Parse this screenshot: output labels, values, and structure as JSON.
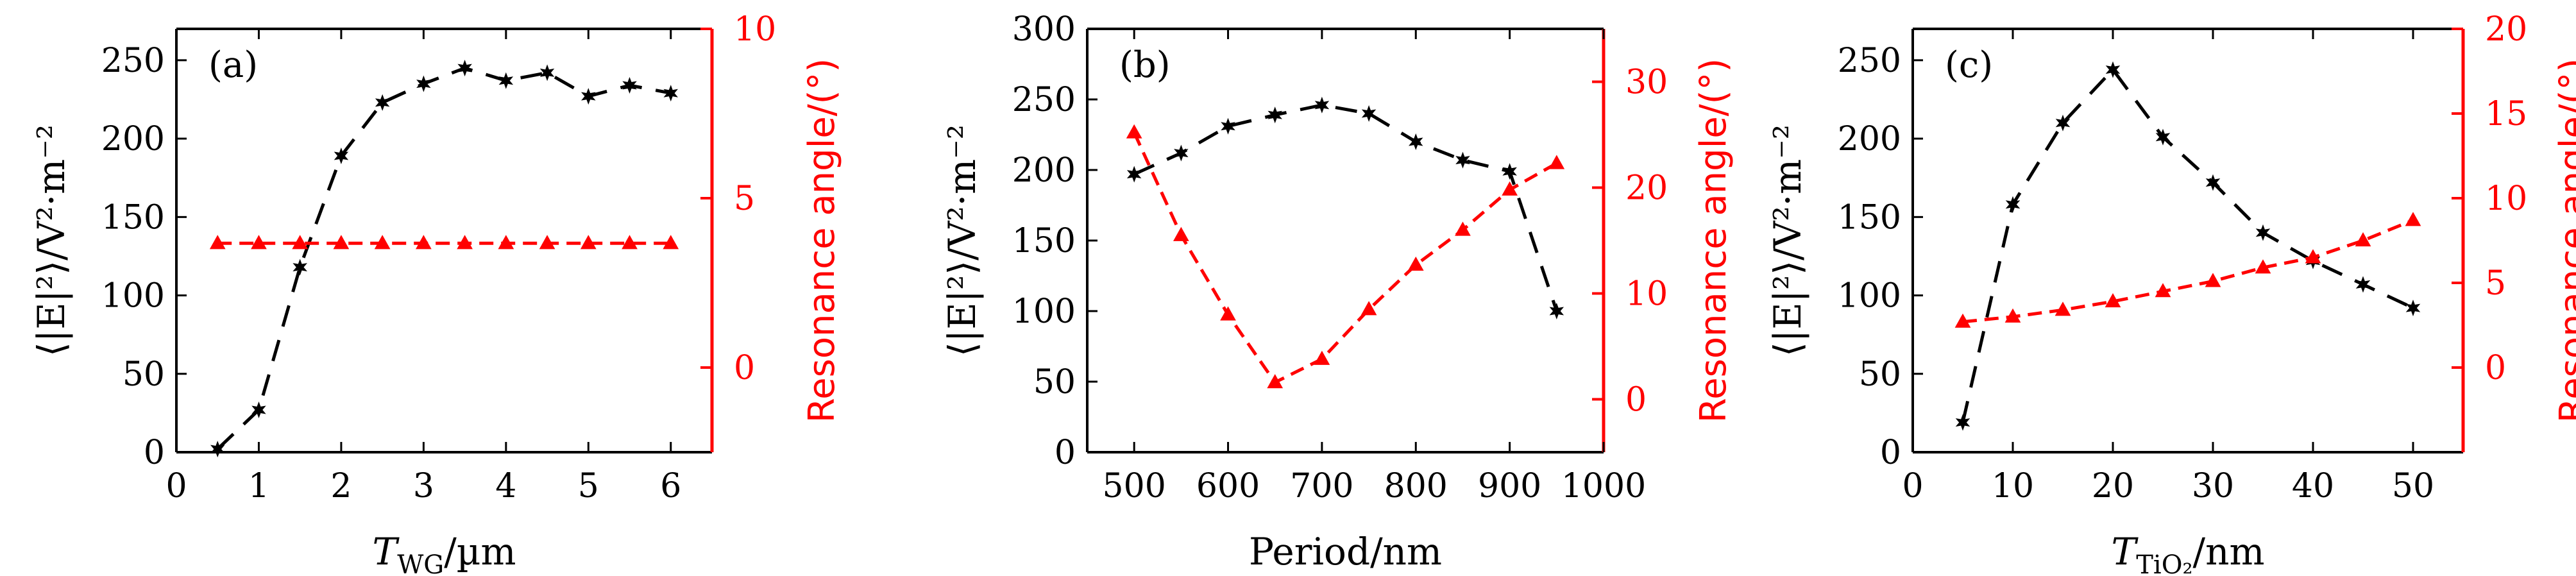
{
  "chart_data": [
    {
      "type": "line",
      "panel_label": "(a)",
      "xlabel_main": "T",
      "xlabel_sub": "WG",
      "xlabel_suffix": "/µm",
      "ylabel_left": "⟨|E|²⟩/V²·m⁻²",
      "ylabel_right": "Resonance angle/(°)",
      "xlim": [
        0,
        6.5
      ],
      "ylim_left": [
        0,
        270
      ],
      "ylim_right": [
        -2.5,
        10
      ],
      "x_ticks": [
        0,
        1,
        2,
        3,
        4,
        5,
        6
      ],
      "y_ticks_left": [
        0,
        50,
        100,
        150,
        200,
        250
      ],
      "y_ticks_right": [
        0,
        5,
        10
      ],
      "series": [
        {
          "name": "field intensity",
          "axis": "left",
          "color": "#000000",
          "marker": "star",
          "linestyle": "long-dash",
          "x": [
            0.5,
            1,
            1.5,
            2,
            2.5,
            3,
            3.5,
            4,
            4.5,
            5,
            5.5,
            6
          ],
          "y": [
            2,
            27,
            118,
            189,
            223,
            235,
            245,
            237,
            242,
            227,
            234,
            229
          ]
        },
        {
          "name": "resonance angle",
          "axis": "right",
          "color": "#ff0000",
          "marker": "triangle",
          "linestyle": "dash",
          "x": [
            0.5,
            1,
            1.5,
            2,
            2.5,
            3,
            3.5,
            4,
            4.5,
            5,
            5.5,
            6
          ],
          "y": [
            3.67,
            3.67,
            3.67,
            3.67,
            3.67,
            3.67,
            3.67,
            3.67,
            3.67,
            3.67,
            3.67,
            3.67
          ]
        }
      ]
    },
    {
      "type": "line",
      "panel_label": "(b)",
      "xlabel_main": "Period/nm",
      "xlabel_sub": "",
      "xlabel_suffix": "",
      "ylabel_left": "⟨|E|²⟩/V²·m⁻²",
      "ylabel_right": "Resonance angle/(°)",
      "xlim": [
        450,
        1000
      ],
      "ylim_left": [
        0,
        300
      ],
      "ylim_right": [
        -5,
        35
      ],
      "x_ticks": [
        500,
        600,
        700,
        800,
        900,
        1000
      ],
      "y_ticks_left": [
        0,
        50,
        100,
        150,
        200,
        250,
        300
      ],
      "y_ticks_right": [
        0,
        10,
        20,
        30
      ],
      "series": [
        {
          "name": "field intensity",
          "axis": "left",
          "color": "#000000",
          "marker": "star",
          "linestyle": "long-dash",
          "x": [
            500,
            550,
            600,
            650,
            700,
            750,
            800,
            850,
            900,
            950
          ],
          "y": [
            197,
            212,
            231,
            239,
            246,
            240,
            220,
            207,
            199,
            100
          ]
        },
        {
          "name": "resonance angle",
          "axis": "right",
          "color": "#ff0000",
          "marker": "triangle",
          "linestyle": "dash",
          "x": [
            500,
            550,
            600,
            650,
            700,
            750,
            800,
            850,
            900,
            950
          ],
          "y": [
            25.2,
            15.5,
            8,
            1.6,
            3.8,
            8.5,
            12.7,
            16,
            19.8,
            22.3
          ]
        }
      ]
    },
    {
      "type": "line",
      "panel_label": "(c)",
      "xlabel_main": "T",
      "xlabel_sub": "TiO₂",
      "xlabel_suffix": "/nm",
      "ylabel_left": "⟨|E|²⟩/V²·m⁻²",
      "ylabel_right": "Resonance angle/(°)",
      "xlim": [
        0,
        55
      ],
      "ylim_left": [
        0,
        270
      ],
      "ylim_right": [
        -5,
        20
      ],
      "x_ticks": [
        0,
        10,
        20,
        30,
        40,
        50
      ],
      "y_ticks_left": [
        0,
        50,
        100,
        150,
        200,
        250
      ],
      "y_ticks_right": [
        0,
        5,
        10,
        15,
        20
      ],
      "series": [
        {
          "name": "field intensity",
          "axis": "left",
          "color": "#000000",
          "marker": "star",
          "linestyle": "long-dash",
          "x": [
            5,
            10,
            15,
            20,
            25,
            30,
            35,
            40,
            45,
            50
          ],
          "y": [
            19,
            158,
            210,
            244,
            201,
            172,
            140,
            122,
            107,
            92
          ]
        },
        {
          "name": "resonance angle",
          "axis": "right",
          "color": "#ff0000",
          "marker": "triangle",
          "linestyle": "dash",
          "x": [
            5,
            10,
            15,
            20,
            25,
            30,
            35,
            40,
            45,
            50
          ],
          "y": [
            2.7,
            3,
            3.4,
            3.9,
            4.5,
            5.1,
            5.9,
            6.5,
            7.5,
            8.7
          ]
        }
      ]
    }
  ]
}
